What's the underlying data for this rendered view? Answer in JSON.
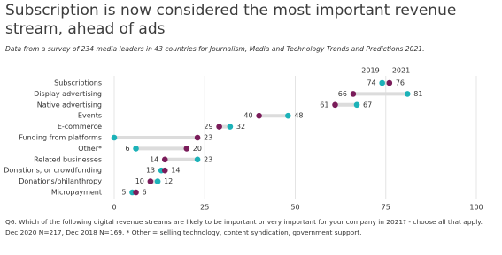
{
  "chart_data": {
    "type": "dumbbell",
    "title": "Subscription is now considered the most important revenue stream, ahead of ads",
    "subtitle": "Data from a survey of 234 media leaders in 43 countries for Journalism, Media and Technology Trends and Predictions 2021.",
    "footnote": "Q6. Which of the following digital revenue streams are likely to be important or very important for your company in 2021? - choose all that apply. Dec 2020 N=217, Dec 2018 N=169. * Other = selling technology, content syndication, government support.",
    "categories": [
      "Subscriptions",
      "Display advertising",
      "Native advertising",
      "Events",
      "E-commerce",
      "Funding from platforms",
      "Other*",
      "Related businesses",
      "Donations, or crowdfunding",
      "Donations/philanthropy",
      "Micropayment"
    ],
    "series": [
      {
        "name": "2019",
        "color": "#1cb2b8",
        "values": [
          74,
          81,
          67,
          48,
          32,
          0,
          6,
          23,
          13,
          12,
          5
        ],
        "value_labels": [
          "74",
          "81",
          "67",
          "48",
          "32",
          null,
          "6",
          "23",
          "13",
          "12",
          "5"
        ]
      },
      {
        "name": "2021",
        "color": "#7a1c5a",
        "values": [
          76,
          66,
          61,
          40,
          29,
          23,
          20,
          14,
          14,
          10,
          6
        ]
      }
    ],
    "xlim": [
      0,
      100
    ],
    "xticks": [
      0,
      25,
      50,
      75,
      100
    ],
    "grid": true
  }
}
